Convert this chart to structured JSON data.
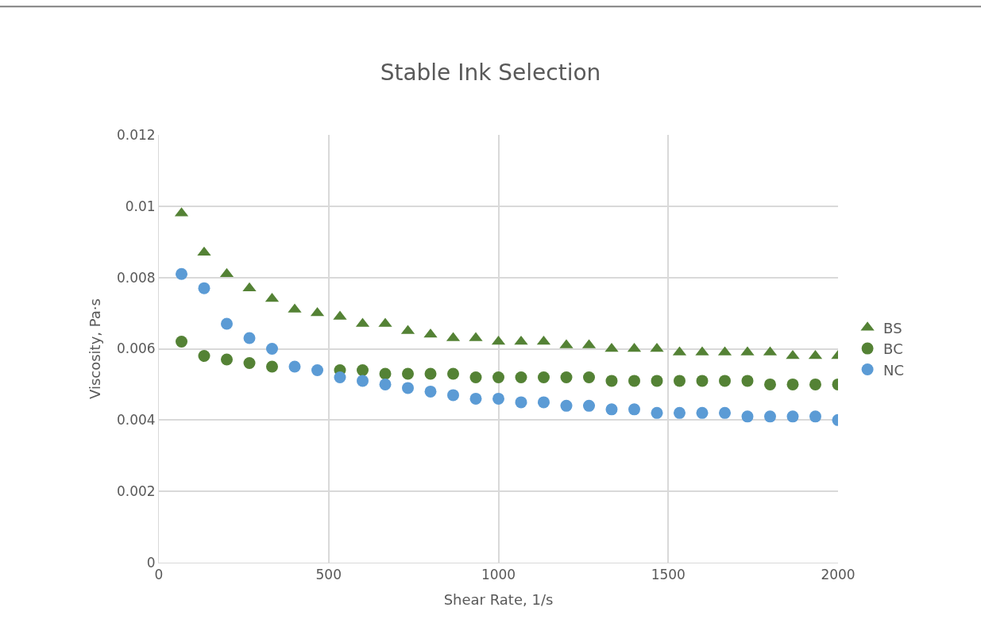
{
  "chart_data": {
    "type": "scatter",
    "title": "Stable Ink Selection",
    "xlabel": "Shear Rate, 1/s",
    "ylabel": "Viscosity, Pa·s",
    "x": [
      66.7,
      133.3,
      200,
      266.7,
      333.3,
      400,
      466.7,
      533.3,
      600,
      666.7,
      733.3,
      800,
      866.7,
      933.3,
      1000,
      1066.7,
      1133.3,
      1200,
      1266.7,
      1333.3,
      1400,
      1466.7,
      1533.3,
      1600,
      1666.7,
      1733.3,
      1800,
      1866.7,
      1933.3,
      2000
    ],
    "series": [
      {
        "name": "BS",
        "color": "#548235",
        "marker": "triangle",
        "values": [
          0.0098,
          0.0087,
          0.0081,
          0.0077,
          0.0074,
          0.0071,
          0.007,
          0.0069,
          0.0067,
          0.0067,
          0.0065,
          0.0064,
          0.0063,
          0.0063,
          0.0062,
          0.0062,
          0.0062,
          0.0061,
          0.0061,
          0.006,
          0.006,
          0.006,
          0.0059,
          0.0059,
          0.0059,
          0.0059,
          0.0059,
          0.0058,
          0.0058,
          0.0058
        ]
      },
      {
        "name": "BC",
        "color": "#548235",
        "marker": "circle",
        "values": [
          0.0062,
          0.0058,
          0.0057,
          0.0056,
          0.0055,
          null,
          null,
          0.0054,
          0.0054,
          0.0053,
          0.0053,
          0.0053,
          0.0053,
          0.0052,
          0.0052,
          0.0052,
          0.0052,
          0.0052,
          0.0052,
          0.0051,
          0.0051,
          0.0051,
          0.0051,
          0.0051,
          0.0051,
          0.0051,
          0.005,
          0.005,
          0.005,
          0.005
        ]
      },
      {
        "name": "NC",
        "color": "#5b9bd5",
        "marker": "circle",
        "values": [
          0.0081,
          0.0077,
          0.0067,
          0.0063,
          0.006,
          0.0055,
          0.0054,
          0.0052,
          0.0051,
          0.005,
          0.0049,
          0.0048,
          0.0047,
          0.0046,
          0.0046,
          0.0045,
          0.0045,
          0.0044,
          0.0044,
          0.0043,
          0.0043,
          0.0042,
          0.0042,
          0.0042,
          0.0042,
          0.0041,
          0.0041,
          0.0041,
          0.0041,
          0.004
        ]
      }
    ],
    "xlim": [
      0,
      2000
    ],
    "xticks": [
      0,
      500,
      1000,
      1500,
      2000
    ],
    "ylim": [
      0,
      0.012
    ],
    "yticks": [
      0,
      0.002,
      0.004,
      0.006,
      0.008,
      0.01,
      0.012
    ],
    "grid": true,
    "legend": "right"
  }
}
